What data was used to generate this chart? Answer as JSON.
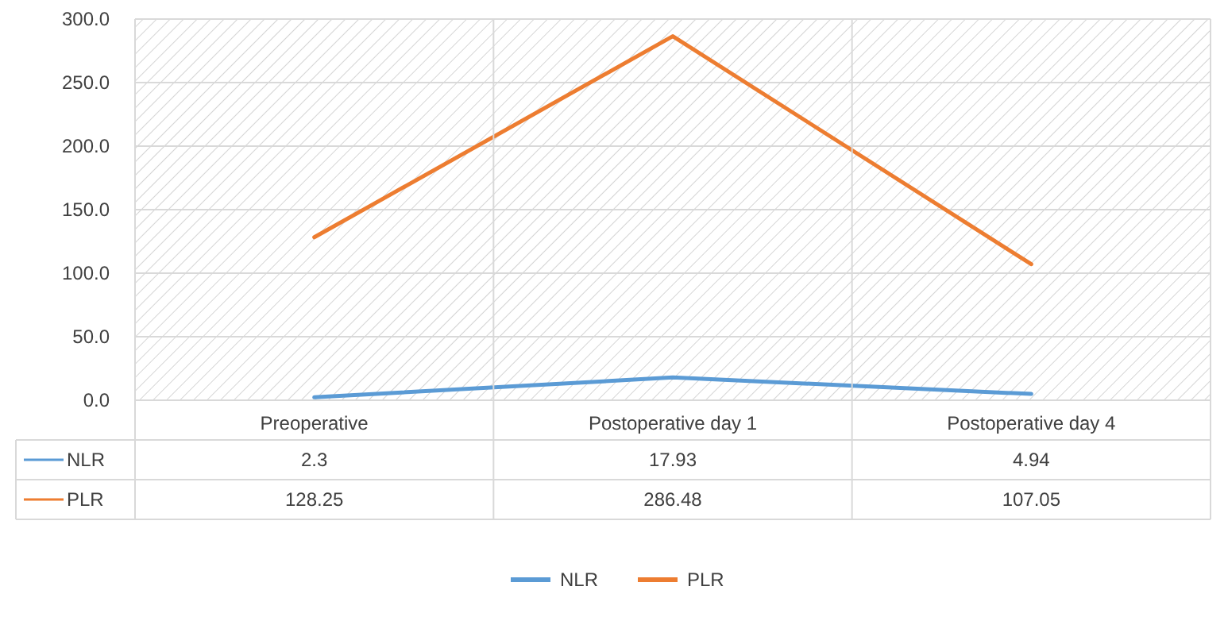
{
  "chart_data": {
    "type": "line",
    "categories": [
      "Preoperative",
      "Postoperative day 1",
      "Postoperative day 4"
    ],
    "series": [
      {
        "name": "NLR",
        "color": "#5b9bd5",
        "values": [
          2.3,
          17.93,
          4.94
        ]
      },
      {
        "name": "PLR",
        "color": "#ed7d31",
        "values": [
          128.25,
          286.48,
          107.05
        ]
      }
    ],
    "ylim": [
      0,
      300
    ],
    "yticks": [
      {
        "value": 0,
        "label": "0.0"
      },
      {
        "value": 50,
        "label": "50.0"
      },
      {
        "value": 100,
        "label": "100.0"
      },
      {
        "value": 150,
        "label": "150.0"
      },
      {
        "value": 200,
        "label": "200.0"
      },
      {
        "value": 250,
        "label": "250.0"
      },
      {
        "value": 300,
        "label": "300.0"
      }
    ],
    "grid": "y",
    "legend": "bottom",
    "data_labels": true,
    "marker": "none",
    "line_style": "solid"
  }
}
